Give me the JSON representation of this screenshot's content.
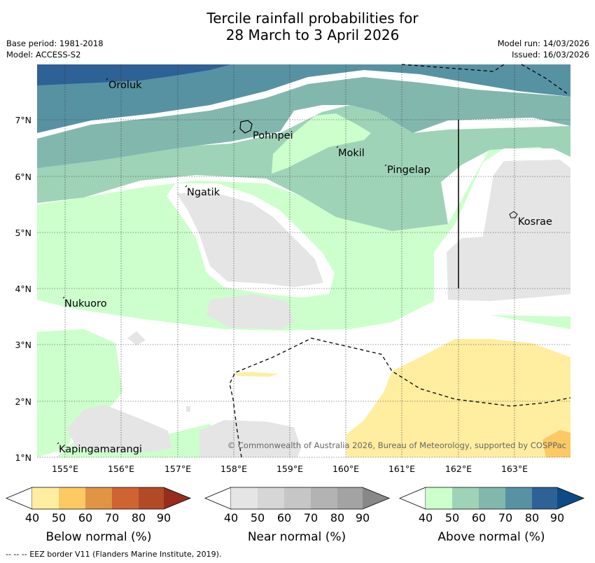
{
  "header": {
    "title_line1": "Tercile rainfall probabilities for",
    "title_line2": "28 March to 3 April 2026",
    "base_period": "Base period: 1981-2018",
    "model": "Model: ACCESS-S2",
    "model_run": "Model run: 14/03/2026",
    "issued": "Issued: 16/03/2026"
  },
  "map": {
    "lon_labels": [
      "155°E",
      "156°E",
      "157°E",
      "158°E",
      "159°E",
      "160°E",
      "161°E",
      "162°E",
      "163°E"
    ],
    "lat_labels": [
      "7°N",
      "6°N",
      "5°N",
      "4°N",
      "3°N",
      "2°N",
      "1°N"
    ],
    "places": [
      "Oroluk",
      "Pohnpei",
      "Mokil",
      "Pingelap",
      "Ngatik",
      "Kosrae",
      "Nukuoro",
      "Kapingamarangi"
    ],
    "copyright": "© Commonwealth of Australia 2026, Bureau of Meteorology, supported by COSPPac"
  },
  "legend": {
    "ticks": [
      "40",
      "50",
      "60",
      "70",
      "80",
      "90"
    ],
    "below_label": "Below normal (%)",
    "near_label": "Near normal (%)",
    "above_label": "Above normal (%)",
    "below_colors": [
      "#ffeea0",
      "#fdc963",
      "#e09444",
      "#cf6331",
      "#b34a26",
      "#962b1e"
    ],
    "near_colors": [
      "#e5e5e5",
      "#d6d6d6",
      "#c6c6c6",
      "#b3b3b3",
      "#a3a3a3",
      "#888888"
    ],
    "above_colors": [
      "#ccffcc",
      "#9fd3b7",
      "#82b7ae",
      "#5792a3",
      "#2e6195",
      "#0e4a85"
    ]
  },
  "footer": {
    "eez_note": "--  --  -- EEZ border V11 (Flanders Marine Institute, 2019)."
  }
}
